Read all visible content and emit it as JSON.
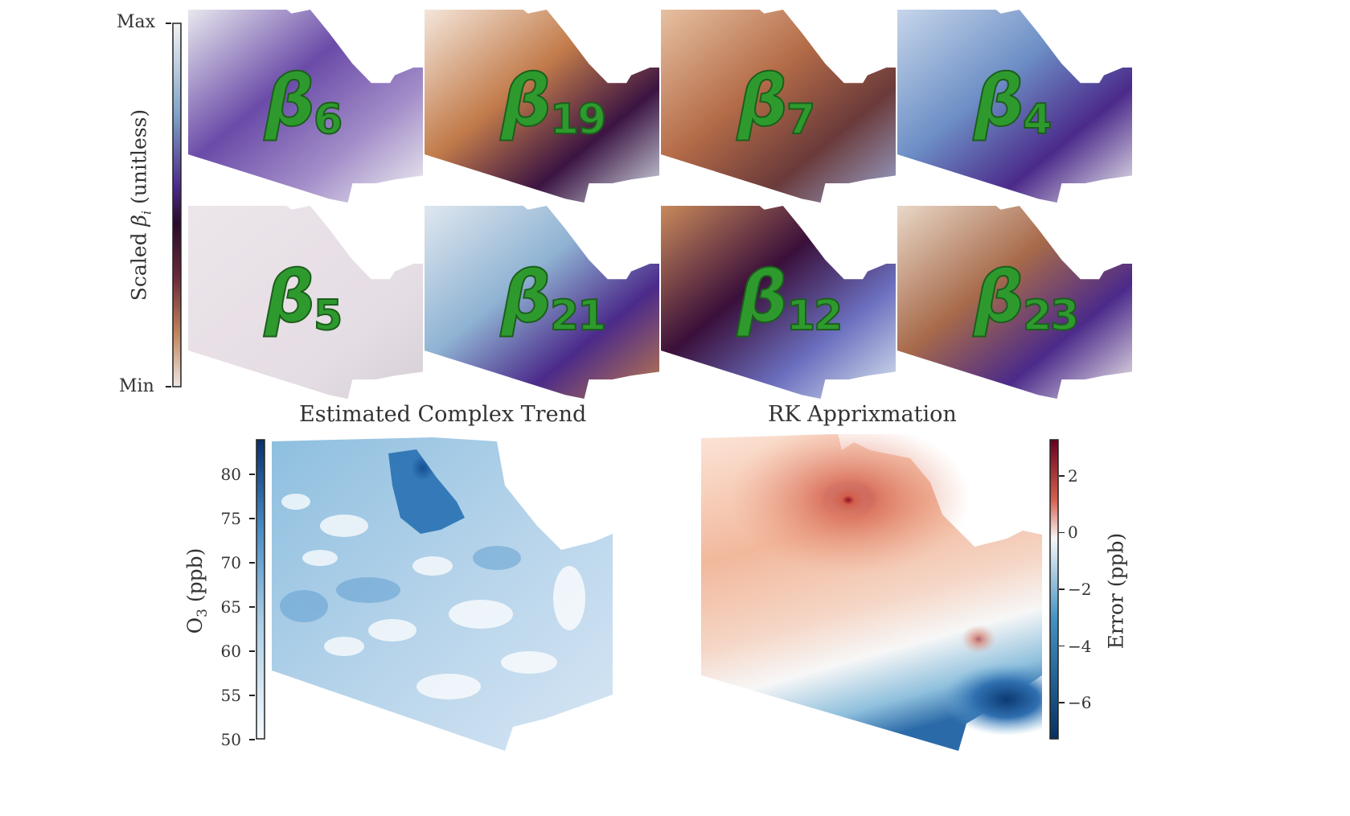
{
  "scaled_colorbar": {
    "max_label": "Max",
    "min_label": "Min",
    "title": "Scaled βi (unitless)",
    "title_main": "Scaled ",
    "title_beta": "β",
    "title_sub": "i",
    "title_tail": " (unitless)",
    "colors": [
      "#f2f2f2",
      "#7fa3c8",
      "#4b2a8a",
      "#2a0a2a",
      "#6a2a3a",
      "#c0825a",
      "#efe6e2"
    ]
  },
  "panels": [
    {
      "beta": "β",
      "sub": "6"
    },
    {
      "beta": "β",
      "sub": "19"
    },
    {
      "beta": "β",
      "sub": "7"
    },
    {
      "beta": "β",
      "sub": "4"
    },
    {
      "beta": "β",
      "sub": "5"
    },
    {
      "beta": "β",
      "sub": "21"
    },
    {
      "beta": "β",
      "sub": "12"
    },
    {
      "beta": "β",
      "sub": "23"
    }
  ],
  "bottom_left": {
    "title": "Estimated Complex Trend",
    "colorbar_label": "O3 (ppb)",
    "colorbar_label_main": "O",
    "colorbar_label_sub": "3",
    "colorbar_label_tail": " (ppb)",
    "ticks": [
      "80",
      "75",
      "70",
      "65",
      "60",
      "55",
      "50"
    ]
  },
  "bottom_right": {
    "title": "RK Apprixmation",
    "colorbar_label": "Error (ppb)",
    "ticks": [
      "2",
      "0",
      "−2",
      "−4",
      "−6"
    ]
  },
  "chart_data": [
    {
      "type": "heatmap",
      "title": "Estimated Complex Trend",
      "colorbar": {
        "label": "O3 (ppb)",
        "range": [
          50,
          84
        ],
        "ticks": [
          50,
          55,
          60,
          65,
          70,
          75,
          80
        ],
        "colormap": "Blues"
      }
    },
    {
      "type": "heatmap",
      "title": "RK Apprixmation",
      "colorbar": {
        "label": "Error (ppb)",
        "range": [
          -7.3,
          3.3
        ],
        "ticks": [
          -6,
          -4,
          -2,
          0,
          2
        ],
        "colormap": "RdBu_r"
      }
    }
  ]
}
